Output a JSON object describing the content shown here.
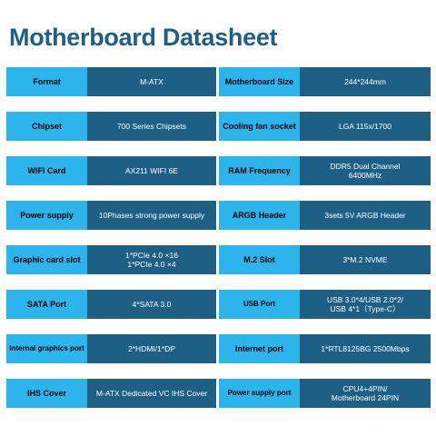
{
  "title": "Motherboard Datasheet",
  "rows": [
    {
      "left": {
        "label": "Format",
        "value": "M-ATX"
      },
      "right": {
        "label": "Motherboard Size",
        "value": "244*244mm"
      }
    },
    {
      "left": {
        "label": "Chipset",
        "value": "700 Series Chipsets"
      },
      "right": {
        "label": "Cooling fan socket",
        "value": "LGA 115x/1700"
      }
    },
    {
      "left": {
        "label": "WIFI Card",
        "value": "AX211 WIFI 6E"
      },
      "right": {
        "label": "RAM Frequency",
        "value": "DDR5 Dual Channel\n6400MHz"
      }
    },
    {
      "left": {
        "label": "Power supply",
        "value": "10Phases strong power supply"
      },
      "right": {
        "label": "ARGB Header",
        "value": "3sets 5V ARGB Header"
      }
    },
    {
      "left": {
        "label": "Graphic card slot",
        "value": "1*PCIe 4.0 ×16\n1*PCIe 4.0 ×4"
      },
      "right": {
        "label": "M.2 Slot",
        "value": "3*M.2 NVME"
      }
    },
    {
      "left": {
        "label": "SATA Port",
        "value": "4*SATA 3.0"
      },
      "right": {
        "label": "USB Port",
        "value": "USB 3.0*4/USB 2.0*2/\nUSB 4*1（Type-C）"
      }
    },
    {
      "left": {
        "label": "Internal graphics port",
        "value": "2*HDMI/1*DP"
      },
      "right": {
        "label": "Internet port",
        "value": "1*RTL8125BG 2500Mbps"
      }
    },
    {
      "left": {
        "label": "IHS Cover",
        "value": "M-ATX Dedicated VC IHS Cover"
      },
      "right": {
        "label": "Power supply port",
        "value": "CPU4+4PIN/\nMotherboard 24PIN"
      }
    }
  ]
}
